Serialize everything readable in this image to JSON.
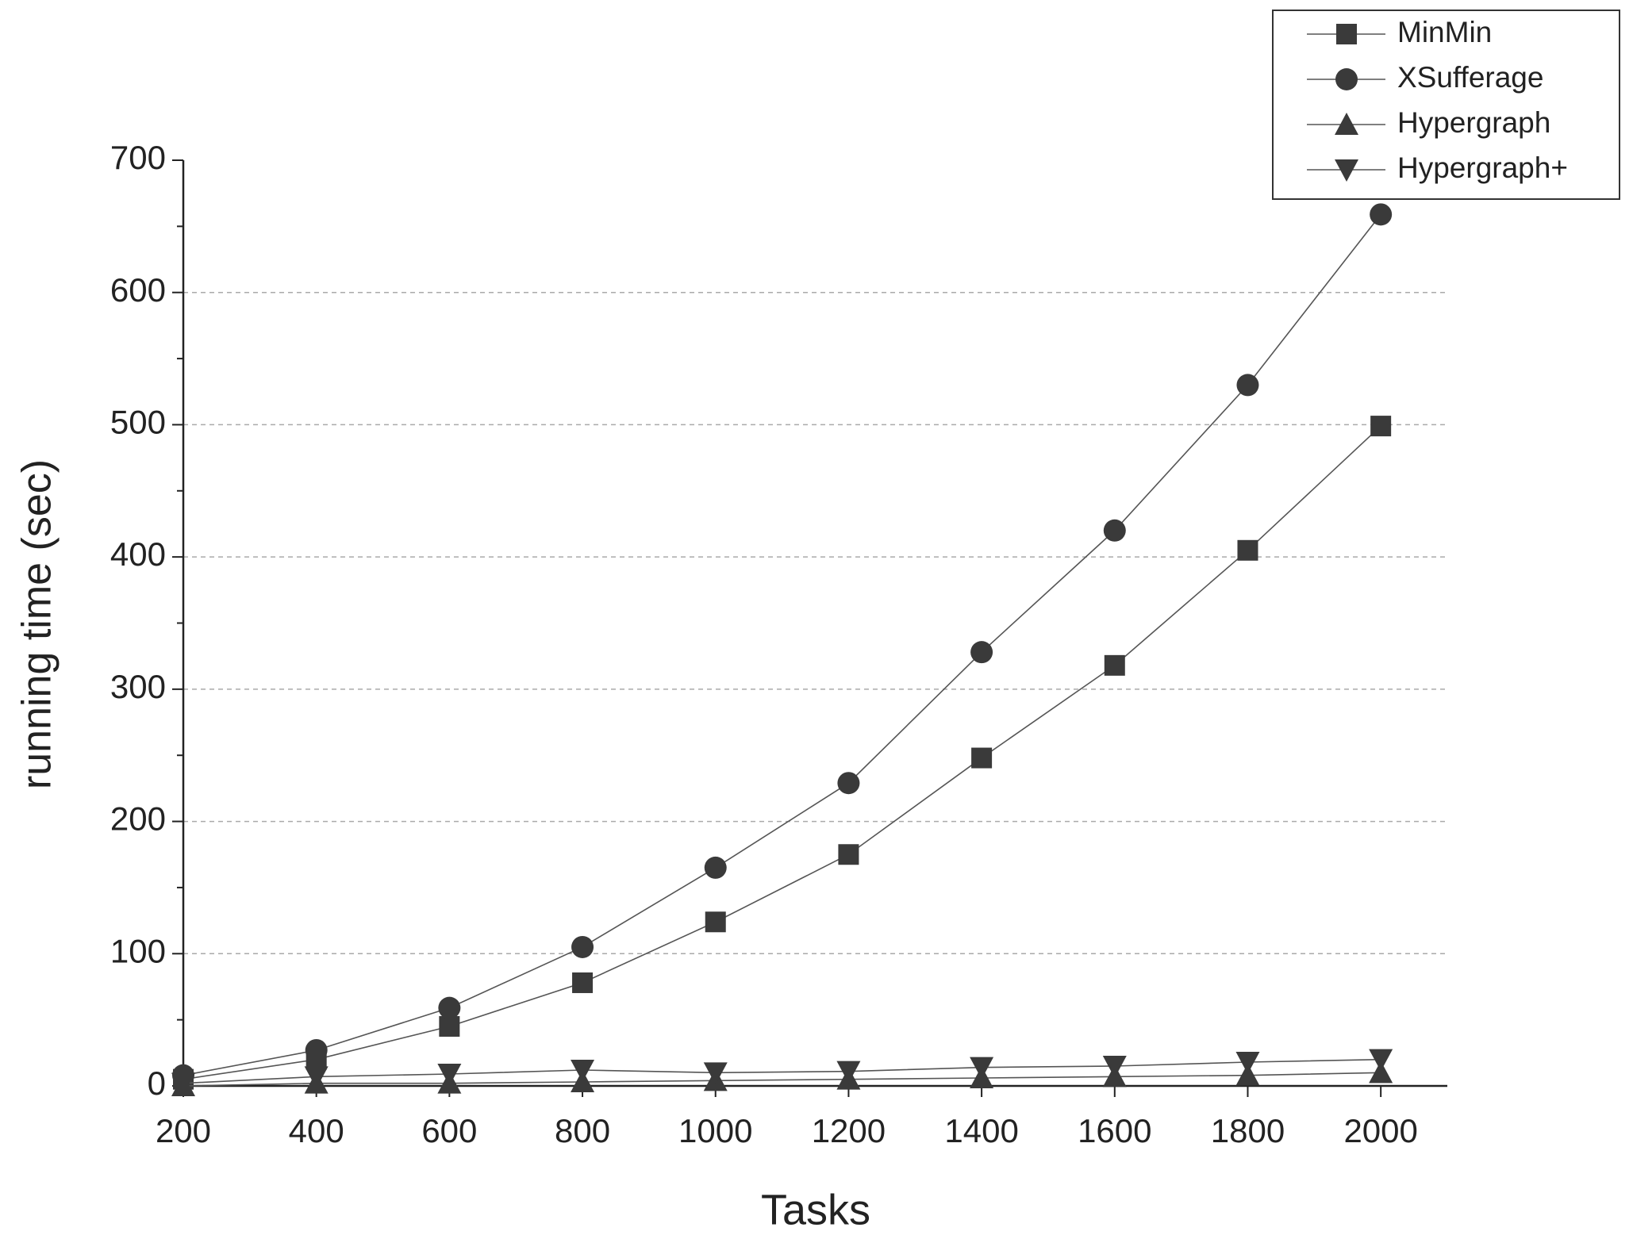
{
  "chart_data": {
    "type": "line",
    "x_label": "Tasks",
    "y_label": "running time (sec)",
    "x": [
      200,
      400,
      600,
      800,
      1000,
      1200,
      1400,
      1600,
      1800,
      2000
    ],
    "series": [
      {
        "name": "MinMin",
        "color": "#3a3a3a",
        "marker": "square",
        "values": [
          5,
          20,
          45,
          78,
          124,
          175,
          248,
          318,
          405,
          499
        ]
      },
      {
        "name": "XSufferage",
        "color": "#3a3a3a",
        "marker": "circle",
        "values": [
          8,
          27,
          59,
          105,
          165,
          229,
          328,
          420,
          530,
          659
        ]
      },
      {
        "name": "Hypergraph",
        "color": "#3a3a3a",
        "marker": "triangle-up",
        "values": [
          0,
          2,
          2,
          3,
          4,
          5,
          6,
          7,
          8,
          10
        ]
      },
      {
        "name": "Hypergraph+",
        "color": "#3a3a3a",
        "marker": "triangle-down",
        "values": [
          2,
          7,
          9,
          12,
          10,
          11,
          14,
          15,
          18,
          20
        ]
      }
    ],
    "xlim": [
      200,
      2100
    ],
    "xticks": [
      200,
      400,
      600,
      800,
      1000,
      1200,
      1400,
      1600,
      1800,
      2000
    ],
    "ylim": [
      0,
      700
    ],
    "yticks": [
      0,
      100,
      200,
      300,
      400,
      500,
      600,
      700
    ],
    "grid": true,
    "legend": "top-right"
  }
}
